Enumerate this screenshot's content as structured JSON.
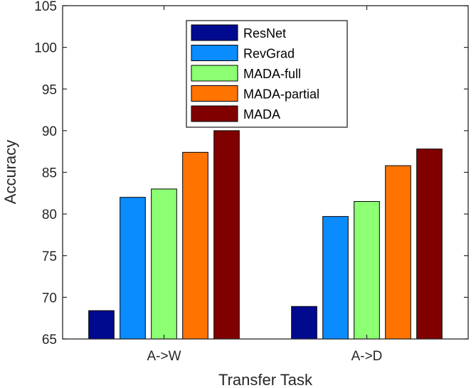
{
  "chart_data": {
    "type": "bar",
    "title": "",
    "xlabel": "Transfer Task",
    "ylabel": "Accuracy",
    "categories": [
      "A->W",
      "A->D"
    ],
    "ylim": [
      65,
      105
    ],
    "yticks": [
      "65",
      "70",
      "75",
      "80",
      "85",
      "90",
      "95",
      "100",
      "105"
    ],
    "grid": false,
    "legend_position": "top-center",
    "series": [
      {
        "name": "ResNet",
        "color": "#000a8f",
        "values": [
          68.4,
          68.9
        ]
      },
      {
        "name": "RevGrad",
        "color": "#0a8cff",
        "values": [
          82.0,
          79.7
        ]
      },
      {
        "name": "MADA-full",
        "color": "#8cff73",
        "values": [
          83.0,
          81.5
        ]
      },
      {
        "name": "MADA-partial",
        "color": "#ff7300",
        "values": [
          87.4,
          85.8
        ]
      },
      {
        "name": "MADA",
        "color": "#800000",
        "values": [
          90.0,
          87.8
        ]
      }
    ]
  }
}
